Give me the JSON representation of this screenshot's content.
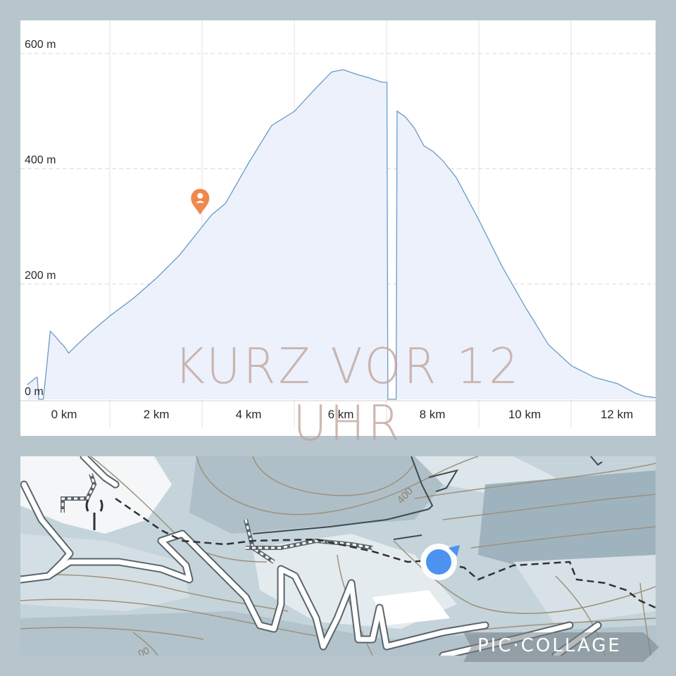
{
  "chart_data": {
    "type": "area",
    "title": "",
    "xlabel": "",
    "ylabel": "",
    "x_unit": "km",
    "y_unit": "m",
    "xlim": [
      -0.8,
      12.97
    ],
    "ylim": [
      0,
      620
    ],
    "xticks": [
      "0 km",
      "2 km",
      "4 km",
      "6 km",
      "8 km",
      "10 km",
      "12 km"
    ],
    "yticks": [
      "0 m",
      "200 m",
      "400 m",
      "600 m"
    ],
    "grid": "y-dashed, x-solid",
    "series": [
      {
        "color": "#6a9bc4",
        "fill": "#ecf1fc",
        "x": [
          -0.8,
          -0.6,
          -0.58,
          -0.55,
          -0.45,
          -0.3,
          -0.2,
          -0.1,
          0.0,
          0.1,
          0.3,
          0.6,
          1.0,
          1.5,
          2.0,
          2.5,
          2.95,
          3.2,
          3.5,
          4.0,
          4.5,
          5.0,
          5.4,
          5.8,
          6.05,
          6.3,
          6.6,
          6.9,
          7.0,
          7.02,
          7.2,
          7.22,
          7.4,
          7.6,
          7.8,
          8.0,
          8.2,
          8.5,
          9.0,
          9.5,
          10.0,
          10.5,
          11.0,
          11.5,
          12.0,
          12.4,
          12.6,
          12.8,
          12.97
        ],
        "y": [
          25,
          38,
          38,
          0,
          0,
          118,
          110,
          100,
          92,
          80,
          96,
          118,
          145,
          175,
          210,
          250,
          295,
          320,
          340,
          410,
          475,
          500,
          535,
          568,
          572,
          565,
          558,
          550,
          550,
          0,
          0,
          500,
          490,
          470,
          440,
          430,
          415,
          385,
          310,
          230,
          160,
          95,
          58,
          38,
          27,
          10,
          5,
          3,
          2
        ]
      }
    ],
    "annotations": [
      {
        "type": "marker",
        "icon": "person-pin-icon",
        "x": 2.95,
        "y": 320,
        "color": "#f0884e"
      }
    ]
  },
  "watermark_text": "KURZ VOR 12 UHR",
  "map": {
    "contour_label": "400",
    "contour_label_bottom": "00",
    "location_color": "#4d92ee"
  },
  "badge": {
    "label": "PIC·COLLAGE"
  }
}
